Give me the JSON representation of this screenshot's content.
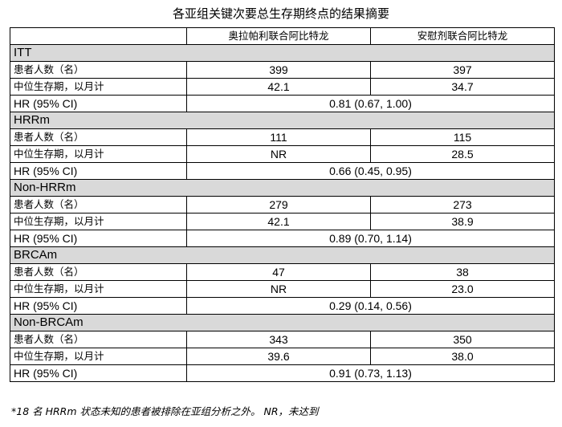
{
  "title": "各亚组关键次要总生存期终点的结果摘要",
  "columns": [
    "",
    "奥拉帕利联合阿比特龙",
    "安慰剂联合阿比特龙"
  ],
  "groups": [
    {
      "name": "ITT",
      "patients_label": "患者人数（名）",
      "patients": [
        "399",
        "397"
      ],
      "median_label": "中位生存期，以月计",
      "median": [
        "42.1",
        "34.7"
      ],
      "hr_label": "HR (95% CI)",
      "hr": "0.81 (0.67, 1.00)"
    },
    {
      "name": "HRRm",
      "patients_label": "患者人数（名）",
      "patients": [
        "111",
        "115"
      ],
      "median_label": "中位生存期，以月计",
      "median": [
        "NR",
        "28.5"
      ],
      "hr_label": "HR (95% CI)",
      "hr": "0.66 (0.45, 0.95)"
    },
    {
      "name": "Non-HRRm",
      "patients_label": "患者人数（名）",
      "patients": [
        "279",
        "273"
      ],
      "median_label": "中位生存期，以月计",
      "median": [
        "42.1",
        "38.9"
      ],
      "hr_label": "HR (95% CI)",
      "hr": "0.89 (0.70, 1.14)"
    },
    {
      "name": "BRCAm",
      "patients_label": "患者人数（名）",
      "patients": [
        "47",
        "38"
      ],
      "median_label": "中位生存期，以月计",
      "median": [
        "NR",
        "23.0"
      ],
      "hr_label": "HR (95% CI)",
      "hr": "0.29 (0.14, 0.56)"
    },
    {
      "name": "Non-BRCAm",
      "patients_label": "患者人数（名）",
      "patients": [
        "343",
        "350"
      ],
      "median_label": "中位生存期，以月计",
      "median": [
        "39.6",
        "38.0"
      ],
      "hr_label": "HR (95% CI)",
      "hr": "0.91 (0.73, 1.13)"
    }
  ],
  "footnote": "*18 名 HRRm 状态未知的患者被排除在亚组分析之外。 NR，未达到"
}
